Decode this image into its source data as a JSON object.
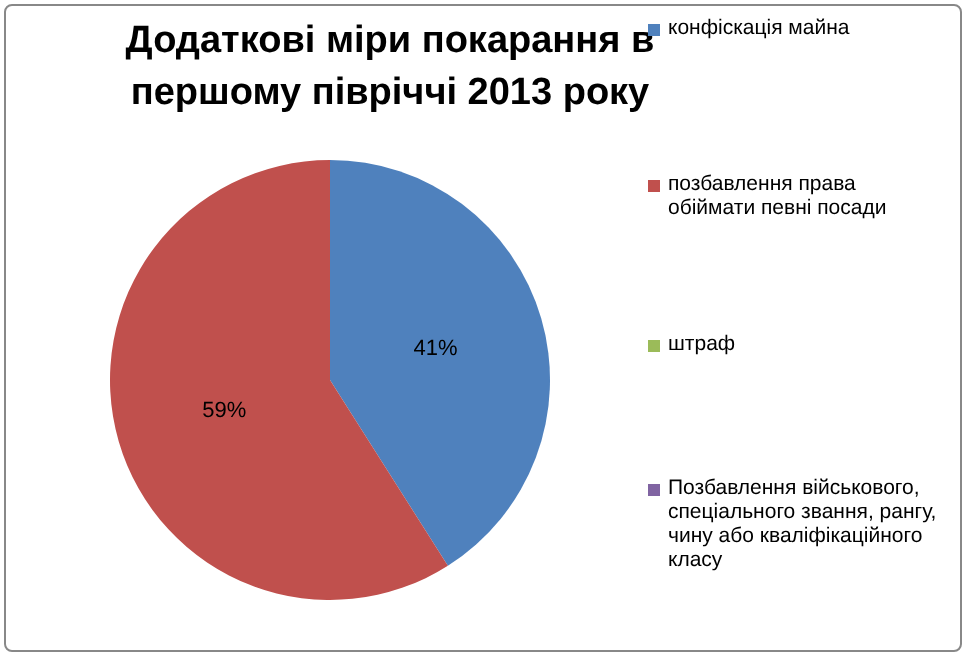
{
  "chart_data": {
    "type": "pie",
    "title": "Додаткові міри покарання в першому півріччі 2013 року",
    "categories": [
      "конфіскація майна",
      "позбавлення права обіймати певні посади",
      "штраф",
      "Позбавлення військового, спеціального звання, рангу, чину або кваліфікаційного класу"
    ],
    "values": [
      41,
      59,
      0,
      0
    ],
    "colors": [
      "#4f81bd",
      "#c0504d",
      "#9bbb59",
      "#8064a2"
    ],
    "value_labels": [
      "41%",
      "59%",
      null,
      null
    ],
    "legend": "right"
  }
}
